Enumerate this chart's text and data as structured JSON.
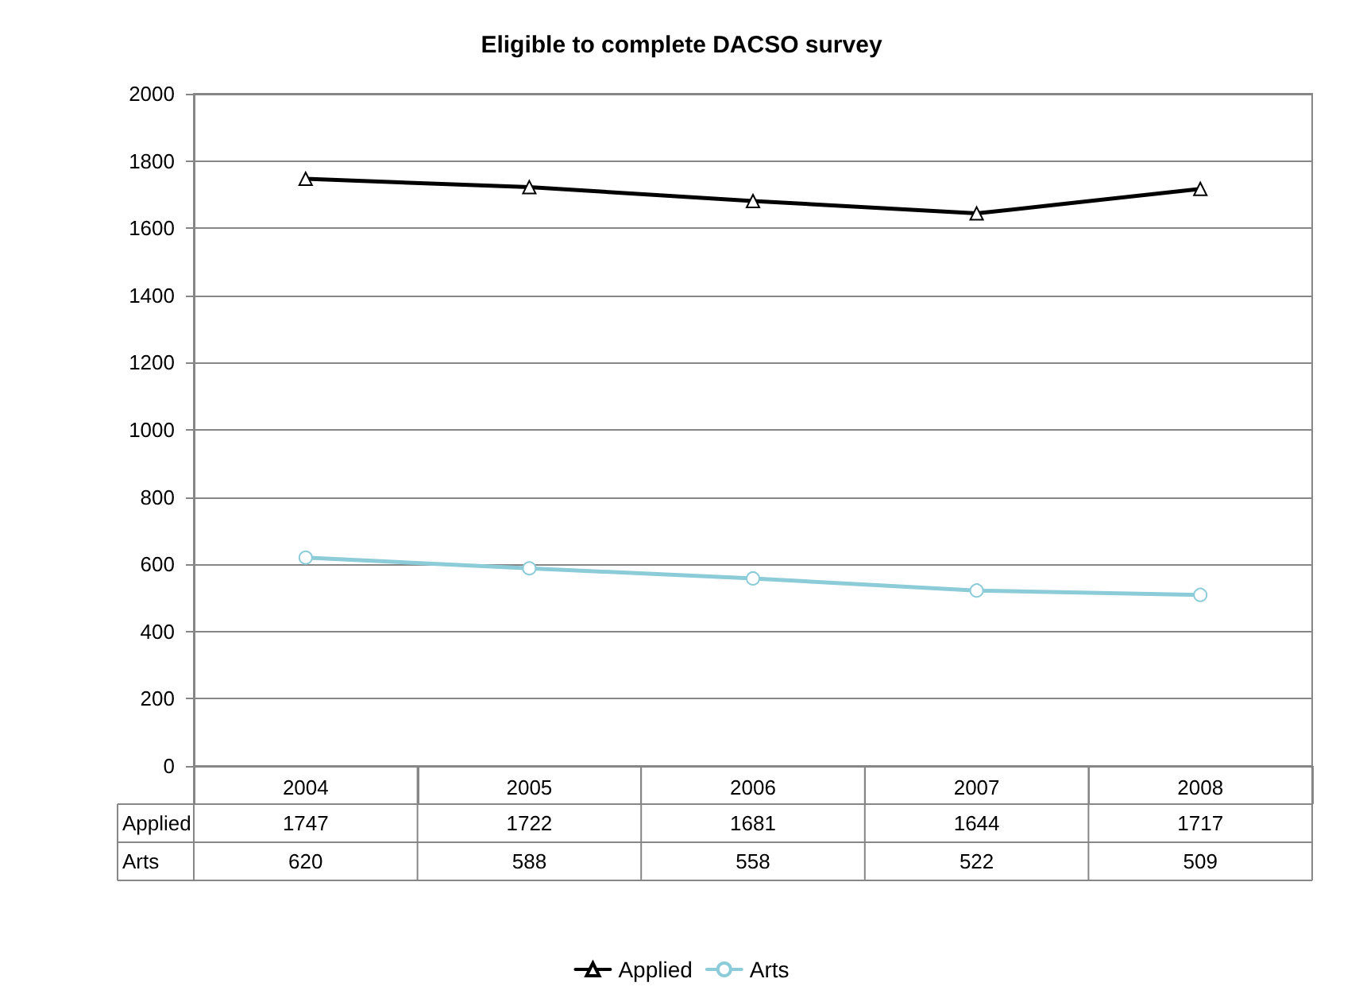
{
  "chart_data": {
    "type": "line",
    "title": "Eligible to complete DACSO survey",
    "categories": [
      "2004",
      "2005",
      "2006",
      "2007",
      "2008"
    ],
    "series": [
      {
        "name": "Applied",
        "color": "#000000",
        "marker": "triangle",
        "values": [
          1747,
          1722,
          1681,
          1644,
          1717
        ]
      },
      {
        "name": "Arts",
        "color": "#8ccbd8",
        "marker": "circle",
        "values": [
          620,
          588,
          558,
          522,
          509
        ]
      }
    ],
    "ylim": [
      0,
      2000
    ],
    "yticks": [
      0,
      200,
      400,
      600,
      800,
      1000,
      1200,
      1400,
      1600,
      1800,
      2000
    ],
    "grid": "y",
    "legend": "bottom",
    "data_labels": true
  }
}
